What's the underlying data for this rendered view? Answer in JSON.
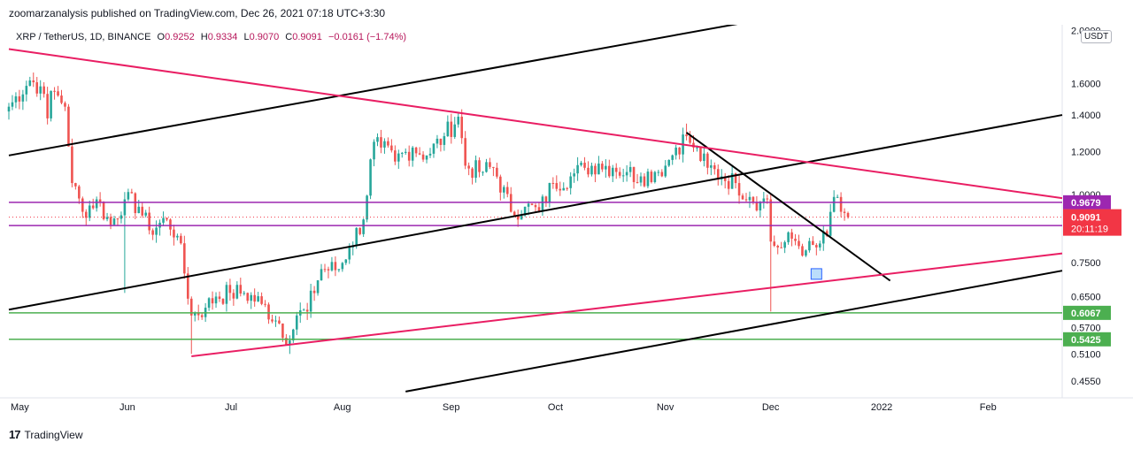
{
  "header": {
    "publisher_line": "zoomarzanalysis published on TradingView.com, Dec 26, 2021 07:18 UTC+3:30"
  },
  "legend": {
    "symbol": "XRP / TetherUS, 1D, BINANCE",
    "o_label": "O",
    "o_value": "0.9252",
    "h_label": "H",
    "h_value": "0.9334",
    "l_label": "L",
    "l_value": "0.9070",
    "c_label": "C",
    "c_value": "0.9091",
    "change": "−0.0161 (−1.74%)"
  },
  "currency_badge": "USDT",
  "footer": {
    "brand": "TradingView",
    "logo_text": "17"
  },
  "colors": {
    "up": "#26a69a",
    "down": "#ef5350",
    "pink_line": "#e91e63",
    "trend_black": "#000000",
    "purple": "#9c27b0",
    "green": "#4caf50",
    "current_price": "#f23645",
    "pane_bg": "#ffffff"
  },
  "chart_data": {
    "type": "candlestick",
    "y_scale": "log",
    "ylim": [
      0.43,
      2.05
    ],
    "y_ticks": [
      "2.0000",
      "1.6000",
      "1.4000",
      "1.2000",
      "1.0000",
      "0.7500",
      "0.6500",
      "0.5700",
      "0.5100",
      "0.4550"
    ],
    "y_tick_values": [
      2.0,
      1.6,
      1.4,
      1.2,
      1.0,
      0.75,
      0.65,
      0.57,
      0.51,
      0.455
    ],
    "x_labels": [
      {
        "date": "2021-05-01",
        "label": "May"
      },
      {
        "date": "2021-06-01",
        "label": "Jun"
      },
      {
        "date": "2021-07-01",
        "label": "Jul"
      },
      {
        "date": "2021-08-01",
        "label": "Aug"
      },
      {
        "date": "2021-09-01",
        "label": "Sep"
      },
      {
        "date": "2021-10-01",
        "label": "Oct"
      },
      {
        "date": "2021-11-01",
        "label": "Nov"
      },
      {
        "date": "2021-12-01",
        "label": "Dec"
      },
      {
        "date": "2022-01-01",
        "label": "2022"
      },
      {
        "date": "2022-02-01",
        "label": "Feb"
      }
    ],
    "x_range": [
      "2021-05-01",
      "2022-02-25"
    ],
    "price_anchors": [
      [
        "2021-05-01",
        1.45
      ],
      [
        "2021-05-07",
        1.62
      ],
      [
        "2021-05-10",
        1.58
      ],
      [
        "2021-05-12",
        1.38
      ],
      [
        "2021-05-13",
        1.55
      ],
      [
        "2021-05-15",
        1.52
      ],
      [
        "2021-05-17",
        1.45
      ],
      [
        "2021-05-19",
        1.05
      ],
      [
        "2021-05-22",
        0.93
      ],
      [
        "2021-05-26",
        0.98
      ],
      [
        "2021-05-30",
        0.88
      ],
      [
        "2021-06-03",
        0.98
      ],
      [
        "2021-06-07",
        0.95
      ],
      [
        "2021-06-10",
        0.86
      ],
      [
        "2021-06-15",
        0.9
      ],
      [
        "2021-06-18",
        0.84
      ],
      [
        "2021-06-22",
        0.6
      ],
      [
        "2021-06-26",
        0.62
      ],
      [
        "2021-06-29",
        0.65
      ],
      [
        "2021-07-03",
        0.66
      ],
      [
        "2021-07-07",
        0.66
      ],
      [
        "2021-07-12",
        0.63
      ],
      [
        "2021-07-17",
        0.58
      ],
      [
        "2021-07-20",
        0.54
      ],
      [
        "2021-07-22",
        0.6
      ],
      [
        "2021-07-25",
        0.61
      ],
      [
        "2021-07-29",
        0.73
      ],
      [
        "2021-08-03",
        0.73
      ],
      [
        "2021-08-06",
        0.8
      ],
      [
        "2021-08-10",
        0.9
      ],
      [
        "2021-08-13",
        1.25
      ],
      [
        "2021-08-15",
        1.22
      ],
      [
        "2021-08-19",
        1.15
      ],
      [
        "2021-08-24",
        1.22
      ],
      [
        "2021-08-28",
        1.18
      ],
      [
        "2021-09-02",
        1.28
      ],
      [
        "2021-09-06",
        1.39
      ],
      [
        "2021-09-08",
        1.13
      ],
      [
        "2021-09-12",
        1.1
      ],
      [
        "2021-09-16",
        1.12
      ],
      [
        "2021-09-21",
        0.93
      ],
      [
        "2021-09-25",
        0.95
      ],
      [
        "2021-09-29",
        0.93
      ],
      [
        "2021-10-03",
        1.05
      ],
      [
        "2021-10-08",
        1.08
      ],
      [
        "2021-10-12",
        1.12
      ],
      [
        "2021-10-16",
        1.14
      ],
      [
        "2021-10-20",
        1.12
      ],
      [
        "2021-10-24",
        1.1
      ],
      [
        "2021-10-28",
        1.08
      ],
      [
        "2021-11-01",
        1.1
      ],
      [
        "2021-11-04",
        1.13
      ],
      [
        "2021-11-07",
        1.22
      ],
      [
        "2021-11-10",
        1.28
      ],
      [
        "2021-11-12",
        1.22
      ],
      [
        "2021-11-16",
        1.12
      ],
      [
        "2021-11-20",
        1.08
      ],
      [
        "2021-11-24",
        1.05
      ],
      [
        "2021-11-28",
        0.99
      ],
      [
        "2021-12-01",
        0.97
      ],
      [
        "2021-12-03",
        0.98
      ],
      [
        "2021-12-04",
        0.82
      ],
      [
        "2021-12-06",
        0.8
      ],
      [
        "2021-12-10",
        0.83
      ],
      [
        "2021-12-14",
        0.79
      ],
      [
        "2021-12-17",
        0.8
      ],
      [
        "2021-12-20",
        0.84
      ],
      [
        "2021-12-22",
        0.99
      ],
      [
        "2021-12-23",
        0.99
      ],
      [
        "2021-12-24",
        0.93
      ],
      [
        "2021-12-25",
        0.9252
      ],
      [
        "2021-12-26",
        0.9091
      ]
    ],
    "wick_extremes": [
      {
        "date": "2021-06-03",
        "low": 0.66
      },
      {
        "date": "2021-06-22",
        "low": 0.51
      },
      {
        "date": "2021-07-20",
        "low": 0.51
      },
      {
        "date": "2021-09-06",
        "high": 1.41
      },
      {
        "date": "2021-11-10",
        "high": 1.35
      },
      {
        "date": "2021-12-04",
        "low": 0.61
      },
      {
        "date": "2021-12-23",
        "high": 1.0
      }
    ],
    "horizontal_levels": [
      {
        "value": 0.9679,
        "label": "0.9679",
        "color": "#9c27b0"
      },
      {
        "value": 0.8773,
        "label": "0.8773",
        "color": "#9c27b0"
      },
      {
        "value": 0.6067,
        "label": "0.6067",
        "color": "#4caf50"
      },
      {
        "value": 0.5425,
        "label": "0.5425",
        "color": "#4caf50"
      }
    ],
    "current_price": {
      "value": 0.9091,
      "label": "0.9091",
      "countdown": "20:11:19"
    },
    "trend_lines": [
      {
        "color": "#000000",
        "from": [
          "2021-05-01",
          1.18
        ],
        "to": [
          "2021-11-25",
          2.06
        ]
      },
      {
        "color": "#000000",
        "from": [
          "2021-05-01",
          0.615
        ],
        "to": [
          "2022-02-25",
          1.4
        ]
      },
      {
        "color": "#000000",
        "from": [
          "2021-08-22",
          0.435
        ],
        "to": [
          "2022-02-25",
          0.725
        ]
      },
      {
        "color": "#000000",
        "from": [
          "2021-11-10",
          1.3
        ],
        "to": [
          "2022-01-07",
          0.695
        ]
      },
      {
        "color": "#e91e63",
        "from": [
          "2021-05-01",
          1.85
        ],
        "to": [
          "2022-02-25",
          0.985
        ]
      },
      {
        "color": "#e91e63",
        "from": [
          "2021-06-22",
          0.505
        ],
        "to": [
          "2022-02-25",
          0.78
        ]
      }
    ]
  }
}
